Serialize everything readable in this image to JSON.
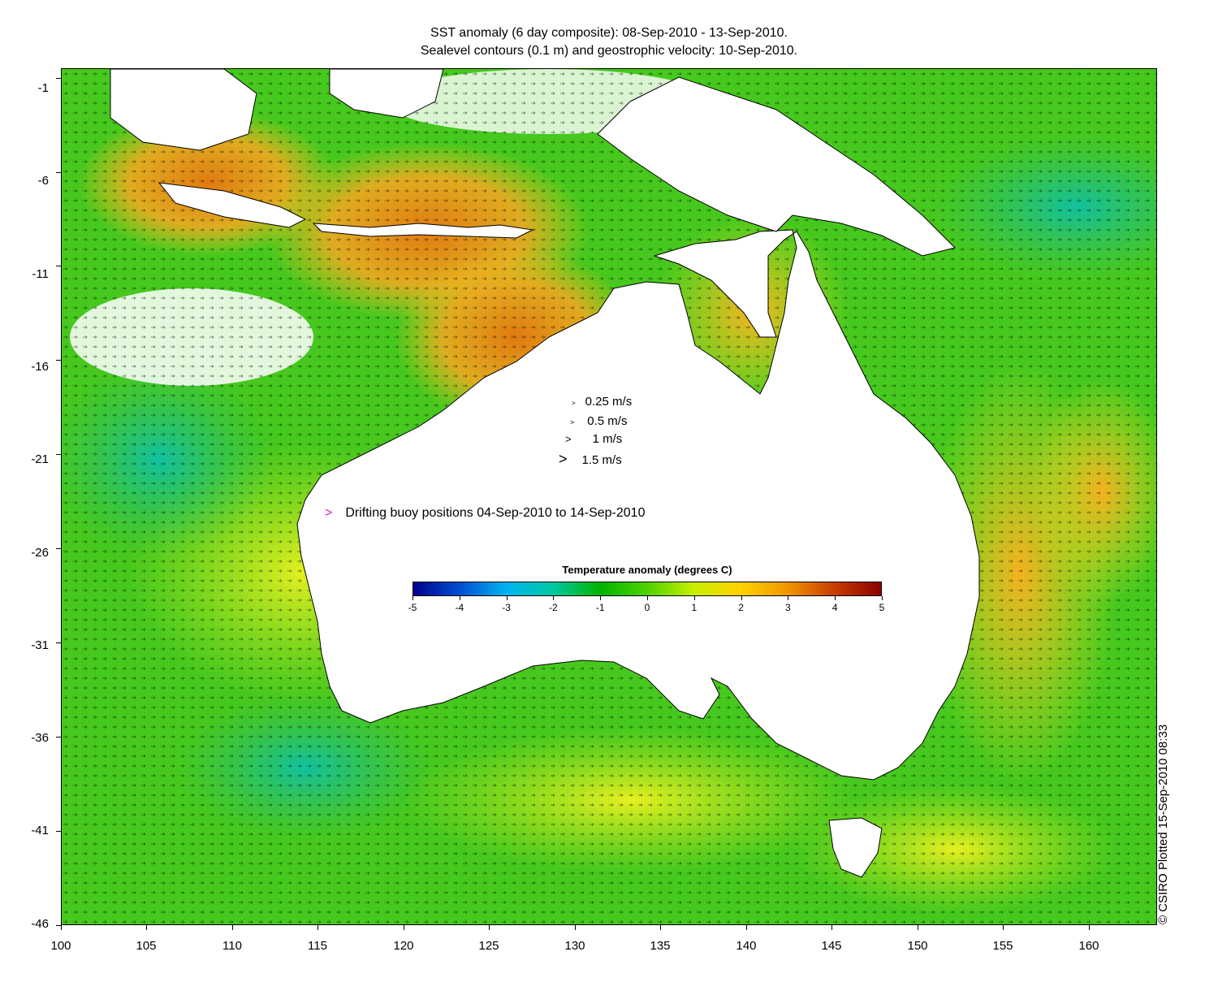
{
  "title": {
    "line1": "SST anomaly (6 day composite): 08-Sep-2010 - 13-Sep-2010.",
    "line2": "Sealevel contours (0.1 m) and geostrophic velocity: 10-Sep-2010."
  },
  "axes": {
    "x_ticks": [
      "100",
      "105",
      "110",
      "115",
      "120",
      "125",
      "130",
      "135",
      "140",
      "145",
      "150",
      "155",
      "160"
    ],
    "y_ticks": [
      "-1",
      "-6",
      "-11",
      "-16",
      "-21",
      "-26",
      "-31",
      "-36",
      "-41",
      "-46"
    ],
    "x_range": [
      100,
      164
    ],
    "y_range": [
      -46,
      -0.5
    ]
  },
  "velocity_scale": [
    {
      "label": "0.25 m/s",
      "speed": 0.25
    },
    {
      "label": "0.5 m/s",
      "speed": 0.5
    },
    {
      "label": "1 m/s",
      "speed": 1
    },
    {
      "label": "1.5 m/s",
      "speed": 1.5
    }
  ],
  "buoy_legend": {
    "marker": ">",
    "label": "Drifting buoy positions 04-Sep-2010 to 14-Sep-2010",
    "color": "#d21ad2"
  },
  "colorbar": {
    "title": "Temperature anomaly (degrees C)",
    "ticks": [
      "-5",
      "-4",
      "-3",
      "-2",
      "-1",
      "0",
      "1",
      "2",
      "3",
      "4",
      "5"
    ],
    "range": [
      -5,
      5
    ],
    "colors": [
      "#00008c",
      "#0050d2",
      "#00b4f0",
      "#00c8a0",
      "#00b400",
      "#50d200",
      "#c8f000",
      "#ffd200",
      "#f09600",
      "#c83c00",
      "#8c0000"
    ]
  },
  "credit": "© CSIRO Plotted 15-Sep-2010 08:33",
  "land_color": "#ffffff",
  "ocean_base_color": "#46c81e"
}
